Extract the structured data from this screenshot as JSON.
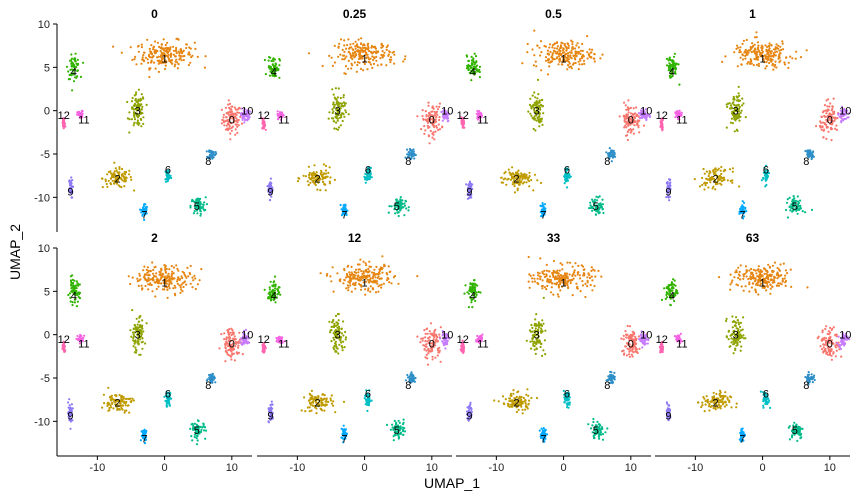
{
  "chart_data": {
    "type": "scatter",
    "xlabel": "UMAP_1",
    "ylabel": "UMAP_2",
    "xlim": [
      -16,
      13
    ],
    "ylim": [
      -14,
      10
    ],
    "x_ticks": [
      -10,
      0,
      10
    ],
    "x_tick_labels": [
      "-10",
      "0",
      "10"
    ],
    "y_ticks": [
      10,
      5,
      0,
      -5,
      -10
    ],
    "y_tick_labels": [
      "10",
      "5",
      "0",
      "-5",
      "-10"
    ],
    "grid": false,
    "legend": "none",
    "panels": [
      {
        "title": "0"
      },
      {
        "title": "0.25"
      },
      {
        "title": "0.5"
      },
      {
        "title": "1"
      },
      {
        "title": "2"
      },
      {
        "title": "12"
      },
      {
        "title": "33"
      },
      {
        "title": "63"
      }
    ],
    "clusters": [
      {
        "id": "0",
        "color": "#F8766D",
        "x": 10.0,
        "y": -1.0,
        "sx": 1.3,
        "sy": 1.6,
        "label_x": 10.0,
        "label_y": -1.0
      },
      {
        "id": "1",
        "color": "#E68613",
        "x": 0.0,
        "y": 6.5,
        "sx": 4.0,
        "sy": 1.4,
        "label_x": 0.0,
        "label_y": 6.0
      },
      {
        "id": "2",
        "color": "#C09B00",
        "x": -7.0,
        "y": -7.8,
        "sx": 2.0,
        "sy": 1.0,
        "label_x": -7.0,
        "label_y": -7.8
      },
      {
        "id": "3",
        "color": "#8EA300",
        "x": -4.0,
        "y": 0.0,
        "sx": 1.0,
        "sy": 1.8,
        "label_x": -4.0,
        "label_y": 0.0
      },
      {
        "id": "4",
        "color": "#31B300",
        "x": -13.5,
        "y": 5.0,
        "sx": 0.8,
        "sy": 1.2,
        "label_x": -13.5,
        "label_y": 4.5
      },
      {
        "id": "5",
        "color": "#00BB89",
        "x": 5.0,
        "y": -11.0,
        "sx": 1.0,
        "sy": 0.9,
        "label_x": 4.8,
        "label_y": -11.0
      },
      {
        "id": "6",
        "color": "#00BFC4",
        "x": 0.5,
        "y": -7.5,
        "sx": 0.4,
        "sy": 0.8,
        "label_x": 0.5,
        "label_y": -6.8
      },
      {
        "id": "7",
        "color": "#00A9FF",
        "x": -3.0,
        "y": -11.5,
        "sx": 0.4,
        "sy": 0.7,
        "label_x": -3.0,
        "label_y": -12.0
      },
      {
        "id": "8",
        "color": "#2E8FC8",
        "x": 7.0,
        "y": -5.0,
        "sx": 0.5,
        "sy": 0.5,
        "label_x": 6.5,
        "label_y": -5.8
      },
      {
        "id": "9",
        "color": "#8F7AF5",
        "x": -14.0,
        "y": -9.0,
        "sx": 0.3,
        "sy": 1.0,
        "label_x": -14.0,
        "label_y": -9.3
      },
      {
        "id": "10",
        "color": "#C77CFF",
        "x": 12.0,
        "y": -0.5,
        "sx": 0.6,
        "sy": 0.7,
        "label_x": 12.3,
        "label_y": 0.0
      },
      {
        "id": "11",
        "color": "#F564E3",
        "x": -12.5,
        "y": -0.5,
        "sx": 0.4,
        "sy": 0.4,
        "label_x": -12.0,
        "label_y": -1.0
      },
      {
        "id": "12",
        "color": "#FF64B0",
        "x": -15.0,
        "y": -1.5,
        "sx": 0.2,
        "sy": 0.6,
        "label_x": -15.0,
        "label_y": -0.5
      }
    ]
  }
}
